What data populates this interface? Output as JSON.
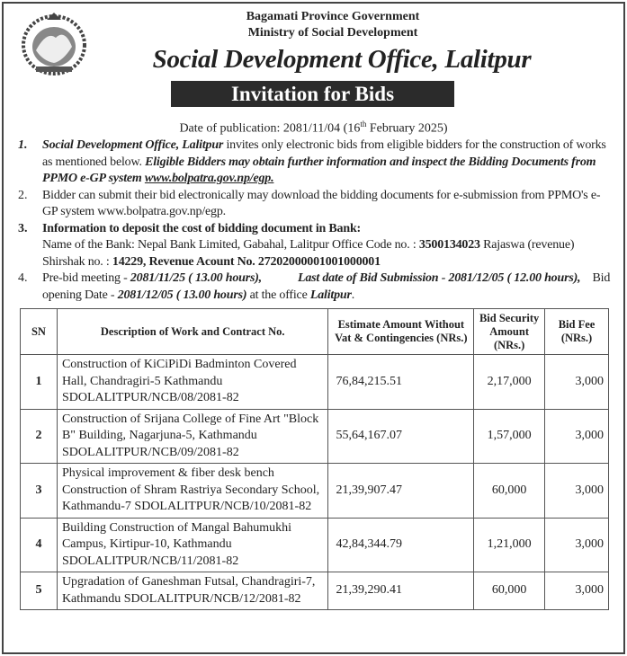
{
  "header": {
    "line1": "Bagamati Province Government",
    "line2": "Ministry of Social Development",
    "office": "Social Development Office, Lalitpur",
    "banner": "Invitation for Bids",
    "pub_prefix": "Date of publication: 2081/11/04 (16",
    "pub_sup": "th",
    "pub_suffix": " February 2025)"
  },
  "items": [
    {
      "num": "1.",
      "a": "Social Development Office, Lalitpur",
      "b": " invites only electronic bids from eligible bidders for the construction of works as mentioned below. ",
      "c": "Eligible Bidders may obtain further information and inspect the Bidding Documents from  PPMO e-GP system ",
      "d": "www.bolpatra.gov.np/egp."
    },
    {
      "num": "2.",
      "a": "Bidder can submit their bid electronically may download the bidding documents for e-submission from PPMO's e-GP system www.bolpatra.gov.np/egp."
    },
    {
      "num": "3.",
      "a": "Information to deposit the cost of bidding document in Bank:",
      "b": "Name of the Bank: Nepal Bank Limited, Gabahal, Lalitpur  Office Code no. : ",
      "c": "3500134023",
      "d": " Rajaswa (revenue) Shirshak no. : ",
      "e": "14229, Revenue Acount No. 27202000001001000001"
    },
    {
      "num": "4.",
      "a": "Pre-bid meeting - ",
      "b": "2081/11/25 ( 13.00 hours),",
      "c": "Last date of Bid Submission -  2081/12/05 ( 12.00 hours),",
      "d": "Bid opening Date - ",
      "e": "2081/12/05 ( 13.00 hours)",
      "f": "  at the office ",
      "g": "Lalitpur",
      "h": "."
    }
  ],
  "table": {
    "headers": [
      "SN",
      "Description of Work and Contract No.",
      "Estimate Amount Without Vat & Contingencies (NRs.)",
      "Bid Security Amount (NRs.)",
      "Bid Fee (NRs.)"
    ],
    "rows": [
      {
        "sn": "1",
        "desc": "Construction of KiCiPiDi Badminton Covered Hall, Chandragiri-5 Kathmandu SDOLALITPUR/NCB/08/2081-82",
        "estimate": "76,84,215.51",
        "security": "2,17,000",
        "fee": "3,000"
      },
      {
        "sn": "2",
        "desc": "Construction of Srijana College of Fine Art \"Block B\" Building, Nagarjuna-5, Kathmandu SDOLALITPUR/NCB/09/2081-82",
        "estimate": "55,64,167.07",
        "security": "1,57,000",
        "fee": "3,000"
      },
      {
        "sn": "3",
        "desc": "Physical improvement & fiber desk bench Construction of Shram Rastriya Secondary School, Kathmandu-7 SDOLALITPUR/NCB/10/2081-82",
        "estimate": "21,39,907.47",
        "security": "60,000",
        "fee": "3,000"
      },
      {
        "sn": "4",
        "desc": "Building Construction of Mangal Bahumukhi Campus, Kirtipur-10, Kathmandu SDOLALITPUR/NCB/11/2081-82",
        "estimate": "42,84,344.79",
        "security": "1,21,000",
        "fee": "3,000"
      },
      {
        "sn": "5",
        "desc": "Upgradation of Ganeshman Futsal, Chandragiri-7, Kathmandu SDOLALITPUR/NCB/12/2081-82",
        "estimate": "21,39,290.41",
        "security": "60,000",
        "fee": "3,000"
      }
    ]
  }
}
